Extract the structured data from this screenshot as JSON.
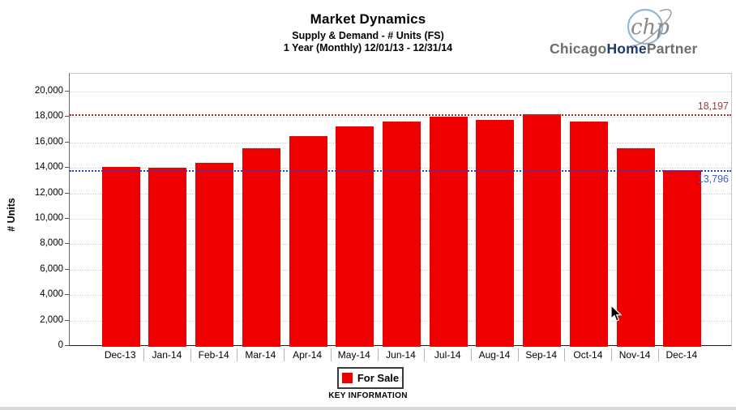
{
  "header": {
    "title": "Market Dynamics",
    "subtitle1": "Supply & Demand - # Units (FS)",
    "subtitle2": "1 Year (Monthly) 12/01/13 - 12/31/14"
  },
  "logo": {
    "monogram": "chp",
    "name_part1": "Chicago",
    "name_part2": "Home",
    "name_part3": "Partner",
    "circle_color": "#93b7d4",
    "monogram_color": "#8a8a8a",
    "gray_color": "#6e6e6e",
    "navy_color": "#1d3a66"
  },
  "chart_data": {
    "type": "bar",
    "title": "Market Dynamics",
    "xlabel": "",
    "ylabel": "# Units",
    "categories": [
      "Dec-13",
      "Jan-14",
      "Feb-14",
      "Mar-14",
      "Apr-14",
      "May-14",
      "Jun-14",
      "Jul-14",
      "Aug-14",
      "Sep-14",
      "Oct-14",
      "Nov-14",
      "Dec-14"
    ],
    "series": [
      {
        "name": "For Sale",
        "color": "#ee0000",
        "values": [
          14100,
          14000,
          14400,
          15550,
          16480,
          17230,
          17640,
          18000,
          17750,
          18197,
          17640,
          15540,
          13796
        ]
      }
    ],
    "ylim": [
      0,
      20000
    ],
    "yticks": [
      {
        "value": 0,
        "label": "0"
      },
      {
        "value": 2000,
        "label": "2,000"
      },
      {
        "value": 4000,
        "label": "4,000"
      },
      {
        "value": 6000,
        "label": "6,000"
      },
      {
        "value": 8000,
        "label": "8,000"
      },
      {
        "value": 10000,
        "label": "10,000"
      },
      {
        "value": 12000,
        "label": "12,000"
      },
      {
        "value": 14000,
        "label": "14,000"
      },
      {
        "value": 16000,
        "label": "16,000"
      },
      {
        "value": 18000,
        "label": "18,000"
      },
      {
        "value": 20000,
        "label": "20,000"
      }
    ],
    "grid": "horizontal-dotted",
    "legend_position": "bottom",
    "reference_lines": [
      {
        "label": "18,197",
        "value": 18197,
        "line_color": "#aa2b2b",
        "label_color": "#a33c3c",
        "label_side": "above"
      },
      {
        "label": "13,796",
        "value": 13796,
        "line_color": "#2b3fd0",
        "label_color": "#3a5fc8",
        "label_side": "below"
      }
    ]
  },
  "legend": {
    "items": [
      {
        "label": "For Sale",
        "color": "#ee0000"
      }
    ]
  },
  "footer": {
    "key_information": "KEY INFORMATION"
  }
}
